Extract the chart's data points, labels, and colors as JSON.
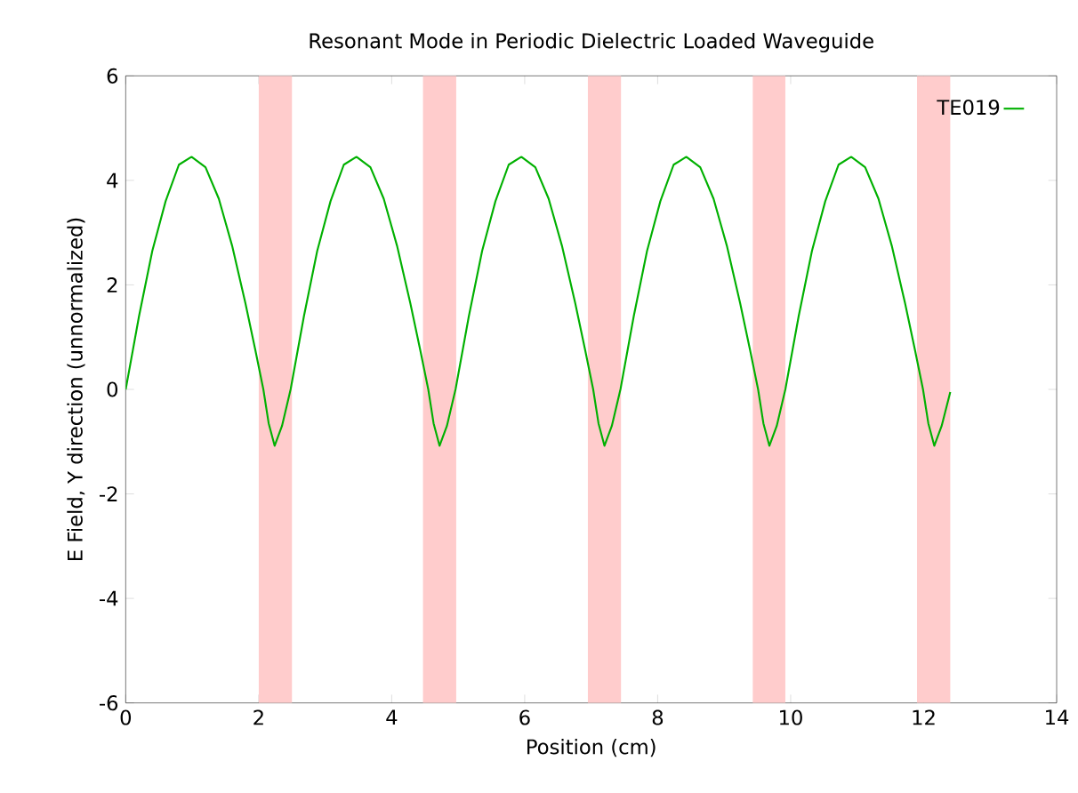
{
  "chart_data": {
    "type": "line",
    "title": "Resonant Mode in Periodic Dielectric Loaded Waveguide",
    "xlabel": "Position (cm)",
    "ylabel": "E Field, Y direction (unnormalized)",
    "xlim": [
      0,
      14
    ],
    "ylim": [
      -6,
      6
    ],
    "xticks": [
      0,
      2,
      4,
      6,
      8,
      10,
      12,
      14
    ],
    "yticks": [
      -6,
      -4,
      -2,
      0,
      2,
      4,
      6
    ],
    "grid": false,
    "legend": "top right",
    "marker": "none",
    "line_style": "solid",
    "bands": [
      {
        "axis": "x",
        "from": 2.0,
        "to": 2.5,
        "color": "#ffcccc"
      },
      {
        "axis": "x",
        "from": 4.47,
        "to": 4.97,
        "color": "#ffcccc"
      },
      {
        "axis": "x",
        "from": 6.95,
        "to": 7.45,
        "color": "#ffcccc"
      },
      {
        "axis": "x",
        "from": 9.43,
        "to": 9.92,
        "color": "#ffcccc"
      },
      {
        "axis": "x",
        "from": 11.9,
        "to": 12.4,
        "color": "#ffcccc"
      }
    ],
    "series": [
      {
        "name": "TE019",
        "color": "#00b000",
        "x": [
          0,
          0.2,
          0.4,
          0.6,
          0.8,
          0.99,
          1.2,
          1.4,
          1.6,
          1.8,
          1.95,
          2.07,
          2.15,
          2.24,
          2.35,
          2.48,
          2.68,
          2.88,
          3.08,
          3.28,
          3.47,
          3.68,
          3.88,
          4.08,
          4.28,
          4.43,
          4.55,
          4.63,
          4.72,
          4.83,
          4.96,
          5.16,
          5.36,
          5.56,
          5.76,
          5.95,
          6.16,
          6.36,
          6.56,
          6.76,
          6.91,
          7.03,
          7.11,
          7.2,
          7.31,
          7.44,
          7.64,
          7.84,
          8.04,
          8.24,
          8.43,
          8.64,
          8.84,
          9.04,
          9.24,
          9.39,
          9.51,
          9.59,
          9.68,
          9.79,
          9.92,
          10.12,
          10.32,
          10.52,
          10.72,
          10.91,
          11.12,
          11.32,
          11.52,
          11.72,
          11.87,
          11.99,
          12.07,
          12.16,
          12.27,
          12.4
        ],
        "values": [
          0,
          1.4,
          2.65,
          3.6,
          4.3,
          4.45,
          4.25,
          3.65,
          2.75,
          1.65,
          0.75,
          0,
          -0.65,
          -1.08,
          -0.7,
          0,
          1.4,
          2.65,
          3.6,
          4.3,
          4.45,
          4.25,
          3.65,
          2.75,
          1.65,
          0.75,
          0,
          -0.65,
          -1.08,
          -0.7,
          0,
          1.4,
          2.65,
          3.6,
          4.3,
          4.45,
          4.25,
          3.65,
          2.75,
          1.65,
          0.75,
          0,
          -0.65,
          -1.08,
          -0.7,
          0,
          1.4,
          2.65,
          3.6,
          4.3,
          4.45,
          4.25,
          3.65,
          2.75,
          1.65,
          0.75,
          0,
          -0.65,
          -1.08,
          -0.7,
          0,
          1.4,
          2.65,
          3.6,
          4.3,
          4.45,
          4.25,
          3.65,
          2.75,
          1.65,
          0.75,
          0,
          -0.65,
          -1.08,
          -0.7,
          -0.05
        ]
      }
    ]
  }
}
